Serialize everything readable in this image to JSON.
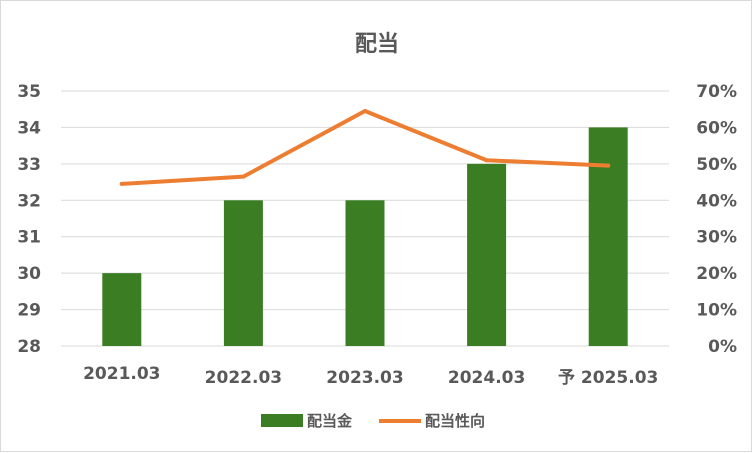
{
  "chart_data": {
    "type": "bar",
    "title": "配当",
    "categories": [
      "2021.03",
      "2022.03",
      "2023.03",
      "2024.03",
      "予 2025.03"
    ],
    "series": [
      {
        "name": "配当金",
        "type": "bar",
        "axis": "left",
        "color": "#3a7d22",
        "values": [
          30,
          32,
          32,
          33,
          34
        ]
      },
      {
        "name": "配当性向",
        "type": "line",
        "axis": "right",
        "color": "#ed7d31",
        "values": [
          44.5,
          46.5,
          64.5,
          51,
          49.5
        ]
      }
    ],
    "left_axis": {
      "min": 28,
      "max": 35,
      "ticks": [
        "28",
        "29",
        "30",
        "31",
        "32",
        "33",
        "34",
        "35"
      ]
    },
    "right_axis": {
      "min": 0,
      "max": 70,
      "ticks": [
        "0%",
        "10%",
        "20%",
        "30%",
        "40%",
        "50%",
        "60%",
        "70%"
      ]
    },
    "grid": true,
    "legend": "bottom"
  }
}
